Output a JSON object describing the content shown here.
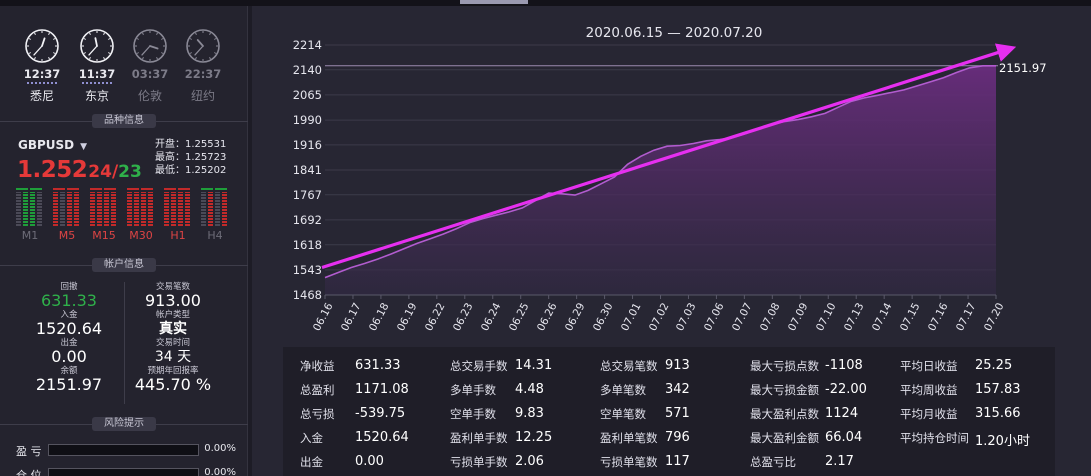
{
  "clocks": [
    {
      "time": "12:37",
      "city": "悉尼",
      "active": true,
      "hour": 12,
      "minute": 37
    },
    {
      "time": "11:37",
      "city": "东京",
      "active": true,
      "hour": 11,
      "minute": 37
    },
    {
      "time": "03:37",
      "city": "伦敦",
      "active": false,
      "hour": 3,
      "minute": 37
    },
    {
      "time": "22:37",
      "city": "纽约",
      "active": false,
      "hour": 22,
      "minute": 37
    }
  ],
  "sections": {
    "symbol_info": "品种信息",
    "account_info": "帐户信息",
    "risk_warning": "风险提示"
  },
  "quote": {
    "symbol": "GBPUSD",
    "price_main": "1.252",
    "price_bid_tail": "24",
    "slash": "/",
    "price_ask_tail": "23",
    "open": "开盘：1.25531",
    "high": "最高：1.25723",
    "low": "最低：1.25202"
  },
  "timeframes": [
    {
      "label": "M1",
      "active": false
    },
    {
      "label": "M5",
      "active": true
    },
    {
      "label": "M15",
      "active": true
    },
    {
      "label": "M30",
      "active": true
    },
    {
      "label": "H1",
      "active": true
    },
    {
      "label": "H4",
      "active": false
    }
  ],
  "account": {
    "drawdown_label": "回撤",
    "drawdown": "631.33",
    "trades_label": "交易笔数",
    "trades": "913.00",
    "deposit_label": "入金",
    "deposit": "1520.64",
    "type_label": "帐户类型",
    "type": "真实",
    "withdraw_label": "出金",
    "withdraw": "0.00",
    "time_label": "交易时间",
    "time": "34 天",
    "balance_label": "余额",
    "balance": "2151.97",
    "annual_label": "预期年回报率",
    "annual": "445.70 %"
  },
  "risk": [
    {
      "label": "盈 亏",
      "value": "0.00%"
    },
    {
      "label": "仓 位",
      "value": "0.00%"
    }
  ],
  "chart_data": {
    "type": "area",
    "title": "2020.06.15 — 2020.07.20",
    "end_value_label": "2151.97",
    "ylim": [
      1468,
      2214
    ],
    "y_ticks": [
      2214,
      2140,
      2065,
      1990,
      1916,
      1841,
      1767,
      1692,
      1618,
      1543,
      1468
    ],
    "x_ticks": [
      "06.16",
      "06.17",
      "06.18",
      "06.19",
      "06.22",
      "06.23",
      "06.24",
      "06.25",
      "06.26",
      "06.29",
      "06.30",
      "07.01",
      "07.02",
      "07.03",
      "07.06",
      "07.07",
      "07.08",
      "07.09",
      "07.10",
      "07.13",
      "07.14",
      "07.15",
      "07.16",
      "07.17",
      "07.20"
    ],
    "series": [
      {
        "values": [
          1520,
          1535,
          1550,
          1562,
          1575,
          1590,
          1606,
          1622,
          1636,
          1650,
          1666,
          1684,
          1696,
          1706,
          1716,
          1728,
          1750,
          1772,
          1770,
          1766,
          1780,
          1800,
          1820,
          1858,
          1882,
          1900,
          1912,
          1914,
          1920,
          1928,
          1932,
          1938,
          1950,
          1966,
          1978,
          1986,
          1992,
          2000,
          2010,
          2028,
          2046,
          2056,
          2064,
          2072,
          2080,
          2092,
          2104,
          2116,
          2132,
          2146,
          2151.97,
          2151.97
        ]
      }
    ],
    "trend_arrow": {
      "from": 1550,
      "to": 2200,
      "color": "#e62ff0"
    }
  },
  "stats": [
    [
      {
        "k": "净收益",
        "v": "631.33"
      },
      {
        "k": "总盈利",
        "v": "1171.08"
      },
      {
        "k": "总亏损",
        "v": "-539.75"
      },
      {
        "k": "入金",
        "v": "1520.64"
      },
      {
        "k": "出金",
        "v": "0.00"
      }
    ],
    [
      {
        "k": "总交易手数",
        "v": "14.31"
      },
      {
        "k": "多单手数",
        "v": "4.48"
      },
      {
        "k": "空单手数",
        "v": "9.83"
      },
      {
        "k": "盈利单手数",
        "v": "12.25"
      },
      {
        "k": "亏损单手数",
        "v": "2.06"
      }
    ],
    [
      {
        "k": "总交易笔数",
        "v": "913"
      },
      {
        "k": "多单笔数",
        "v": "342"
      },
      {
        "k": "空单笔数",
        "v": "571"
      },
      {
        "k": "盈利单笔数",
        "v": "796"
      },
      {
        "k": "亏损单笔数",
        "v": "117"
      }
    ],
    [
      {
        "k": "最大亏损点数",
        "v": "-1108"
      },
      {
        "k": "最大亏损金额",
        "v": "-22.00"
      },
      {
        "k": "最大盈利点数",
        "v": "1124"
      },
      {
        "k": "最大盈利金额",
        "v": "66.04"
      },
      {
        "k": "总盈亏比",
        "v": "2.17"
      }
    ],
    [
      {
        "k": "平均日收益",
        "v": "25.25"
      },
      {
        "k": "平均周收益",
        "v": "157.83"
      },
      {
        "k": "平均月收益",
        "v": "315.66"
      },
      {
        "k": "平均持仓时间",
        "v": "1.20小时"
      }
    ]
  ],
  "colors": {
    "price_red": "#e53939",
    "price_green": "#2fb04a",
    "line": "#b25ccf",
    "area_top": "#6a2d7e",
    "arrow": "#e62ff0"
  }
}
